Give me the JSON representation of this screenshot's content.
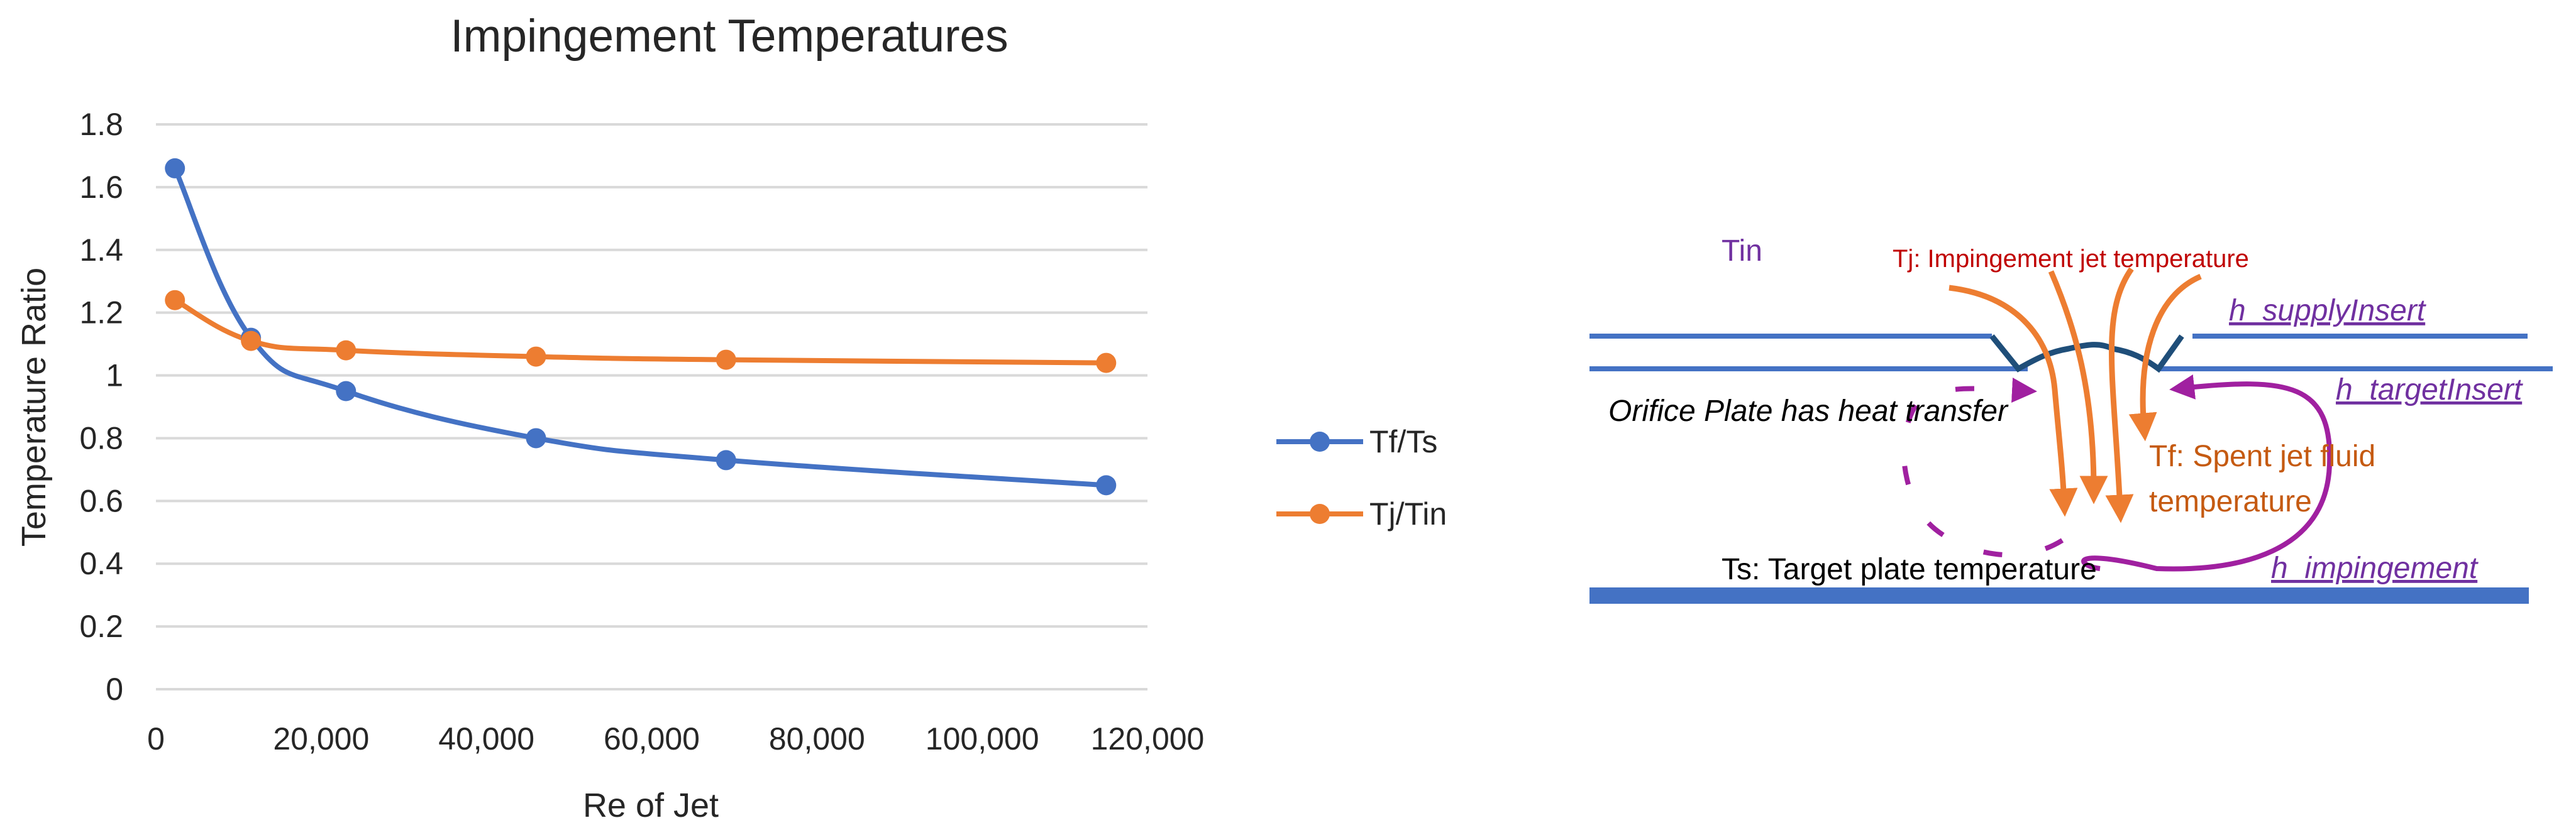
{
  "chart_data": {
    "type": "line",
    "title": "Impingement Temperatures",
    "xlabel": "Re of Jet",
    "ylabel": "Temperature Ratio",
    "xlim": [
      0,
      120000
    ],
    "ylim": [
      0,
      1.8
    ],
    "x_ticks": [
      "0",
      "20,000",
      "40,000",
      "60,000",
      "80,000",
      "100,000",
      "120,000"
    ],
    "y_ticks": [
      "0",
      "0.2",
      "0.4",
      "0.6",
      "0.8",
      "1",
      "1.2",
      "1.4",
      "1.6",
      "1.8"
    ],
    "grid": "horizontal",
    "smoothed": true,
    "legend_position": "right",
    "series": [
      {
        "name": "Tf/Ts",
        "color": "#4472C4",
        "x": [
          2300,
          11500,
          23000,
          46000,
          69000,
          115000
        ],
        "y": [
          1.66,
          1.12,
          0.95,
          0.8,
          0.73,
          0.65
        ]
      },
      {
        "name": "Tj/Tin",
        "color": "#ED7D31",
        "x": [
          2300,
          11500,
          23000,
          46000,
          69000,
          115000
        ],
        "y": [
          1.24,
          1.11,
          1.08,
          1.06,
          1.05,
          1.04
        ]
      }
    ]
  },
  "diagram": {
    "labels": {
      "tin": "Tin",
      "tj": "Tj: Impingement jet temperature",
      "h_supply": "h_supplyInsert",
      "h_target": "h_targetInsert",
      "orifice": "Orifice Plate has heat transfer",
      "tf_line1": "Tf: Spent jet fluid",
      "tf_line2": "temperature",
      "ts": "Ts: Target plate temperature",
      "h_imp": "h_impingement"
    },
    "colors": {
      "plate": "#4472C4",
      "orifice": "#1F4E79",
      "flow": "#ED7D31",
      "recirc": "#A020A0",
      "tin": "#7030A0",
      "tj": "#C00000",
      "tf": "#C55A11",
      "h_label": "#7030A0"
    }
  }
}
